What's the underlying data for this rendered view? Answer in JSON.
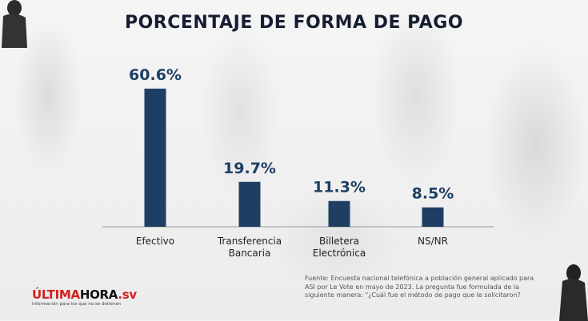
{
  "chart_data": {
    "type": "bar",
    "title": "PORCENTAJE DE FORMA DE PAGO",
    "categories": [
      [
        "Efectivo"
      ],
      [
        "Transferencia",
        "Bancaria"
      ],
      [
        "Billetera",
        "Electrónica"
      ],
      [
        "NS/NR"
      ]
    ],
    "values": [
      60.6,
      19.7,
      11.3,
      8.5
    ],
    "value_labels": [
      "60.6%",
      "19.7%",
      "11.3%",
      "8.5%"
    ],
    "xlabel": "",
    "ylabel": "",
    "ylim": [
      0,
      60.6
    ],
    "grid": false,
    "legend": "none",
    "bar_color": "#1e3f63",
    "label_color": "#1e3f63",
    "axis_color": "#9a9a9a"
  },
  "source_note": "Fuente: Encuesta nacional telefónica a población general aplicado para ASI por Le Vote en mayo de 2023. La pregunta fue formulada de la siguiente manera: \"¿Cuál fue el método de pago que le solicitaron?",
  "logo": {
    "part_a": "ÚLTIMA",
    "part_b": "HORA",
    "part_c": ".sv",
    "tagline": "Información para los que no se detienen"
  }
}
